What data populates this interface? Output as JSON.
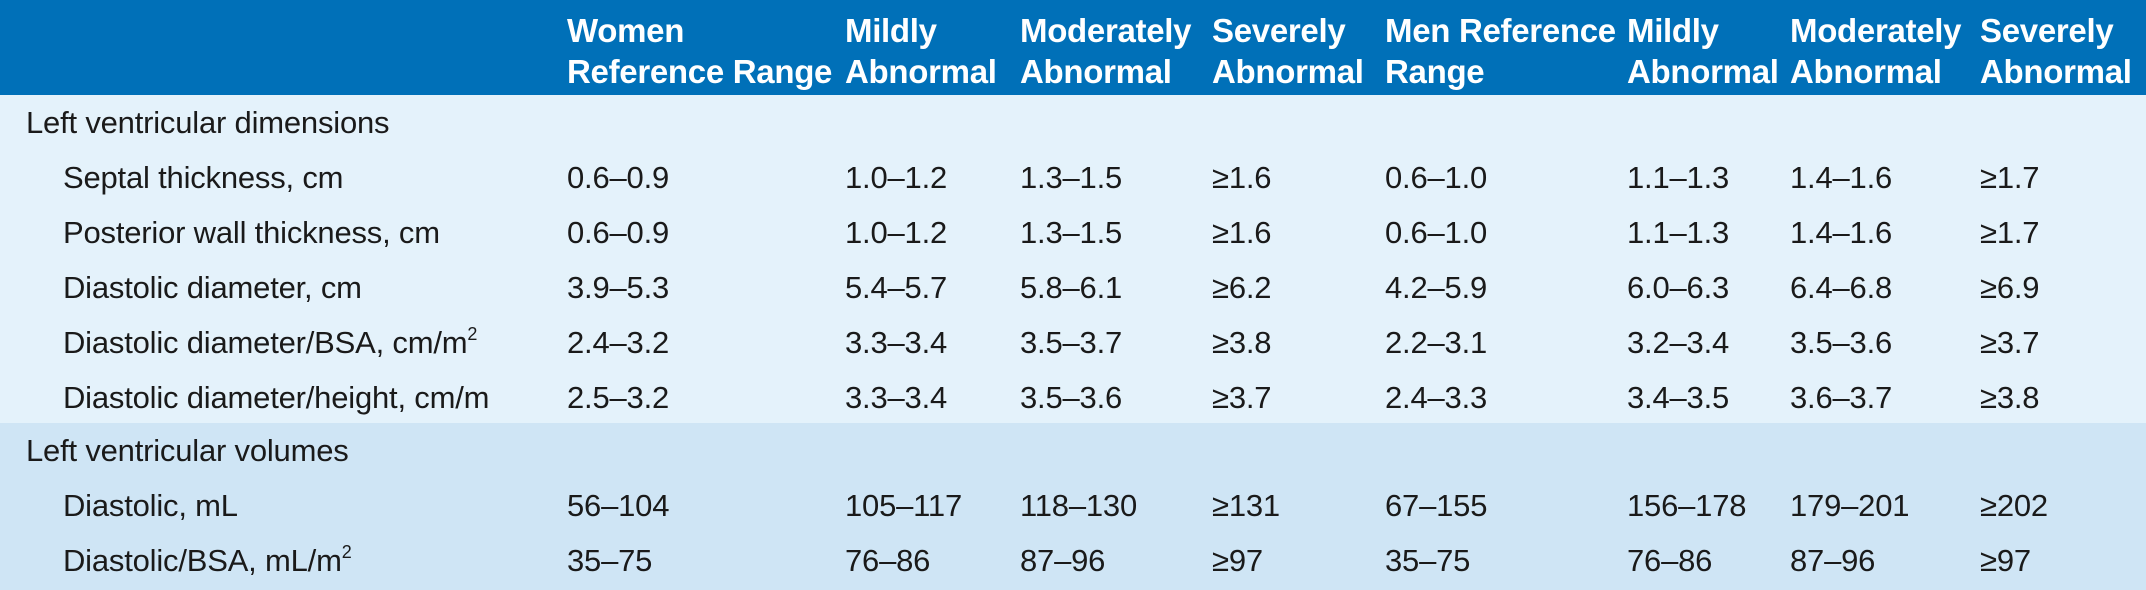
{
  "columns": [
    {
      "line1": "",
      "line2": ""
    },
    {
      "line1": "Women",
      "line2": "Reference Range"
    },
    {
      "line1": "Mildly",
      "line2": "Abnormal"
    },
    {
      "line1": "Moderately",
      "line2": "Abnormal"
    },
    {
      "line1": "Severely",
      "line2": "Abnormal"
    },
    {
      "line1": "Men Reference",
      "line2": "Range"
    },
    {
      "line1": "Mildly",
      "line2": "Abnormal"
    },
    {
      "line1": "Moderately",
      "line2": "Abnormal"
    },
    {
      "line1": "Severely",
      "line2": "Abnormal"
    }
  ],
  "sections": [
    {
      "title": "Left ventricular dimensions",
      "rows": [
        {
          "label": "Septal thickness, cm",
          "sup": "",
          "values": [
            "0.6–0.9",
            "1.0–1.2",
            "1.3–1.5",
            "≥1.6",
            "0.6–1.0",
            "1.1–1.3",
            "1.4–1.6",
            "≥1.7"
          ]
        },
        {
          "label": "Posterior wall thickness, cm",
          "sup": "",
          "values": [
            "0.6–0.9",
            "1.0–1.2",
            "1.3–1.5",
            "≥1.6",
            "0.6–1.0",
            "1.1–1.3",
            "1.4–1.6",
            "≥1.7"
          ]
        },
        {
          "label": "Diastolic diameter, cm",
          "sup": "",
          "values": [
            "3.9–5.3",
            "5.4–5.7",
            "5.8–6.1",
            "≥6.2",
            "4.2–5.9",
            "6.0–6.3",
            "6.4–6.8",
            "≥6.9"
          ]
        },
        {
          "label": "Diastolic diameter/BSA, cm/m",
          "sup": "2",
          "values": [
            "2.4–3.2",
            "3.3–3.4",
            "3.5–3.7",
            "≥3.8",
            "2.2–3.1",
            "3.2–3.4",
            "3.5–3.6",
            "≥3.7"
          ]
        },
        {
          "label": "Diastolic diameter/height, cm/m",
          "sup": "",
          "values": [
            "2.5–3.2",
            "3.3–3.4",
            "3.5–3.6",
            "≥3.7",
            "2.4–3.3",
            "3.4–3.5",
            "3.6–3.7",
            "≥3.8"
          ]
        }
      ]
    },
    {
      "title": "Left ventricular volumes",
      "rows": [
        {
          "label": "Diastolic, mL",
          "sup": "",
          "values": [
            "56–104",
            "105–117",
            "118–130",
            "≥131",
            "67–155",
            "156–178",
            "179–201",
            "≥202"
          ]
        },
        {
          "label": "Diastolic/BSA, mL/m",
          "sup": "2",
          "values": [
            "35–75",
            "76–86",
            "87–96",
            "≥97",
            "35–75",
            "76–86",
            "87–96",
            "≥97"
          ]
        }
      ]
    }
  ]
}
